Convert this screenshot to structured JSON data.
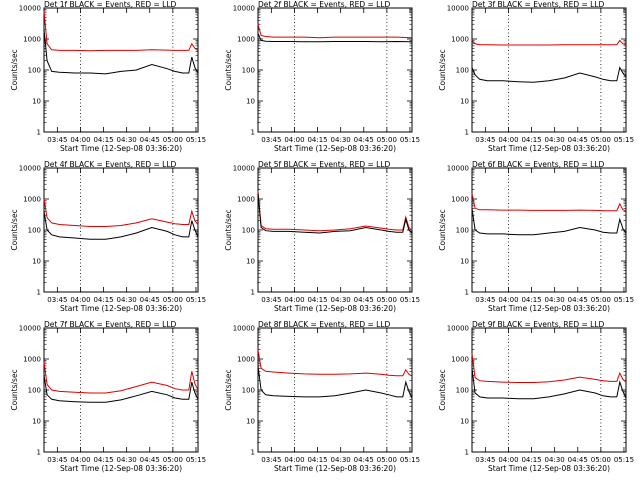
{
  "colors": {
    "events": "#000000",
    "lld": "#dd0000",
    "axis": "#000000",
    "background": "#ffffff"
  },
  "ylabel": "Counts/sec",
  "xlabel": "Start Time (12-Sep-08 03:36:20)",
  "ytick_labels": [
    "1",
    "10",
    "100",
    "1000",
    "10000"
  ],
  "xtick_labels": [
    "03:45",
    "04:00",
    "04:15",
    "04:30",
    "04:45",
    "05:00",
    "05:15"
  ],
  "x_range_minutes": [
    0,
    100
  ],
  "y_range_log": [
    1,
    10000
  ],
  "chart_data": [
    {
      "type": "line",
      "title": "Det 1f BLACK = Events, RED = LLD",
      "x": [
        0,
        2,
        5,
        10,
        20,
        30,
        40,
        50,
        60,
        70,
        80,
        85,
        90,
        94,
        96,
        98,
        100
      ],
      "series": [
        {
          "name": "Events",
          "values": [
            2000,
            200,
            90,
            85,
            80,
            80,
            75,
            90,
            100,
            150,
            110,
            90,
            80,
            80,
            260,
            120,
            80
          ]
        },
        {
          "name": "LLD",
          "values": [
            8000,
            700,
            450,
            430,
            430,
            420,
            430,
            430,
            430,
            450,
            440,
            430,
            430,
            430,
            700,
            500,
            420
          ]
        }
      ]
    },
    {
      "type": "line",
      "title": "Det 2f BLACK = Events, RED = LLD",
      "x": [
        0,
        2,
        5,
        10,
        20,
        30,
        40,
        50,
        60,
        70,
        80,
        90,
        100
      ],
      "series": [
        {
          "name": "Events",
          "values": [
            1500,
            900,
            850,
            830,
            830,
            820,
            820,
            830,
            830,
            830,
            820,
            830,
            820
          ]
        },
        {
          "name": "LLD",
          "values": [
            3000,
            1300,
            1200,
            1150,
            1150,
            1150,
            1100,
            1150,
            1150,
            1150,
            1150,
            1150,
            1100
          ]
        }
      ]
    },
    {
      "type": "line",
      "title": "Det 3f BLACK = Events, RED = LLD",
      "x": [
        0,
        2,
        5,
        10,
        20,
        30,
        40,
        50,
        60,
        70,
        80,
        85,
        90,
        94,
        96,
        98,
        100
      ],
      "series": [
        {
          "name": "Events",
          "values": [
            120,
            70,
            50,
            45,
            45,
            42,
            40,
            45,
            55,
            80,
            60,
            50,
            45,
            45,
            120,
            80,
            60
          ]
        },
        {
          "name": "LLD",
          "values": [
            900,
            700,
            650,
            650,
            640,
            640,
            640,
            640,
            650,
            650,
            650,
            650,
            650,
            650,
            900,
            700,
            650
          ]
        }
      ]
    },
    {
      "type": "line",
      "title": "Det 4f BLACK = Events, RED = LLD",
      "x": [
        0,
        2,
        5,
        10,
        20,
        30,
        40,
        50,
        60,
        70,
        80,
        85,
        90,
        94,
        96,
        98,
        100
      ],
      "series": [
        {
          "name": "Events",
          "values": [
            400,
            100,
            70,
            60,
            55,
            50,
            50,
            60,
            80,
            120,
            90,
            70,
            60,
            60,
            200,
            100,
            60
          ]
        },
        {
          "name": "LLD",
          "values": [
            1000,
            250,
            170,
            150,
            140,
            130,
            130,
            140,
            170,
            230,
            180,
            160,
            150,
            150,
            400,
            200,
            150
          ]
        }
      ]
    },
    {
      "type": "line",
      "title": "Det 5f BLACK = Events, RED = LLD",
      "x": [
        0,
        2,
        5,
        10,
        20,
        30,
        40,
        50,
        60,
        70,
        80,
        85,
        90,
        94,
        96,
        98,
        100
      ],
      "series": [
        {
          "name": "Events",
          "values": [
            1500,
            120,
            95,
            90,
            90,
            85,
            80,
            90,
            95,
            120,
            100,
            90,
            85,
            85,
            220,
            100,
            80
          ]
        },
        {
          "name": "LLD",
          "values": [
            1800,
            140,
            110,
            105,
            105,
            100,
            95,
            100,
            110,
            135,
            115,
            105,
            100,
            100,
            260,
            120,
            95
          ]
        }
      ]
    },
    {
      "type": "line",
      "title": "Det 6f BLACK = Events, RED = LLD",
      "x": [
        0,
        2,
        5,
        10,
        20,
        30,
        40,
        50,
        60,
        70,
        80,
        85,
        90,
        94,
        96,
        98,
        100
      ],
      "series": [
        {
          "name": "Events",
          "values": [
            500,
            100,
            80,
            75,
            75,
            70,
            70,
            80,
            90,
            120,
            100,
            85,
            80,
            80,
            220,
            110,
            80
          ]
        },
        {
          "name": "LLD",
          "values": [
            1500,
            500,
            450,
            450,
            440,
            440,
            430,
            430,
            430,
            440,
            430,
            420,
            420,
            420,
            700,
            450,
            420
          ]
        }
      ]
    },
    {
      "type": "line",
      "title": "Det 7f BLACK = Events, RED = LLD",
      "x": [
        0,
        2,
        5,
        10,
        20,
        30,
        40,
        50,
        60,
        70,
        80,
        85,
        90,
        94,
        96,
        98,
        100
      ],
      "series": [
        {
          "name": "Events",
          "values": [
            300,
            70,
            50,
            45,
            42,
            40,
            40,
            48,
            65,
            90,
            70,
            55,
            50,
            50,
            180,
            80,
            50
          ]
        },
        {
          "name": "LLD",
          "values": [
            800,
            150,
            100,
            90,
            85,
            80,
            80,
            95,
            130,
            180,
            140,
            110,
            100,
            100,
            400,
            160,
            100
          ]
        }
      ]
    },
    {
      "type": "line",
      "title": "Det 8f BLACK = Events, RED = LLD",
      "x": [
        0,
        2,
        5,
        10,
        20,
        30,
        40,
        50,
        60,
        70,
        80,
        85,
        90,
        94,
        96,
        98,
        100
      ],
      "series": [
        {
          "name": "Events",
          "values": [
            600,
            100,
            70,
            65,
            62,
            60,
            60,
            65,
            80,
            100,
            80,
            70,
            60,
            60,
            180,
            90,
            55
          ]
        },
        {
          "name": "LLD",
          "values": [
            2000,
            500,
            400,
            380,
            350,
            330,
            320,
            320,
            330,
            350,
            320,
            300,
            290,
            290,
            450,
            320,
            280
          ]
        }
      ]
    },
    {
      "type": "line",
      "title": "Det 9f BLACK = Events, RED = LLD",
      "x": [
        0,
        2,
        5,
        10,
        20,
        30,
        40,
        50,
        60,
        70,
        80,
        85,
        90,
        94,
        96,
        98,
        100
      ],
      "series": [
        {
          "name": "Events",
          "values": [
            500,
            80,
            60,
            55,
            55,
            52,
            52,
            60,
            75,
            100,
            80,
            65,
            60,
            60,
            180,
            90,
            55
          ]
        },
        {
          "name": "LLD",
          "values": [
            1500,
            250,
            200,
            190,
            180,
            175,
            175,
            185,
            210,
            260,
            220,
            200,
            190,
            190,
            350,
            220,
            180
          ]
        }
      ]
    }
  ]
}
